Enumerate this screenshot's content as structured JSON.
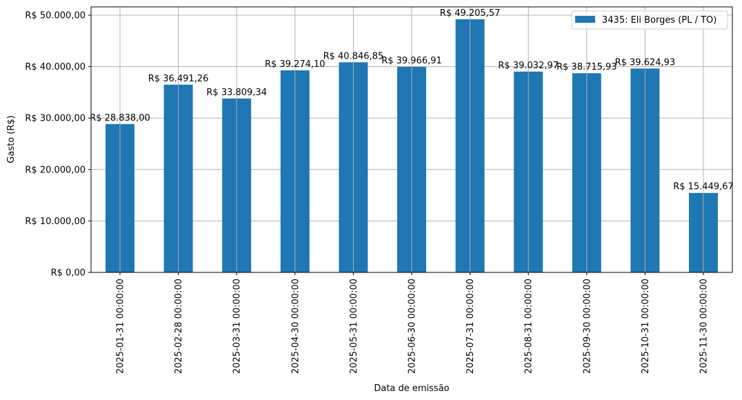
{
  "chart_data": {
    "type": "bar",
    "title": "",
    "xlabel": "Data de emissão",
    "ylabel": "Gasto (R$)",
    "ylim": [
      0,
      51600
    ],
    "grid": true,
    "legend_position": "upper right",
    "categories": [
      "2025-01-31 00:00:00",
      "2025-02-28 00:00:00",
      "2025-03-31 00:00:00",
      "2025-04-30 00:00:00",
      "2025-05-31 00:00:00",
      "2025-06-30 00:00:00",
      "2025-07-31 00:00:00",
      "2025-08-31 00:00:00",
      "2025-09-30 00:00:00",
      "2025-10-31 00:00:00",
      "2025-11-30 00:00:00"
    ],
    "series": [
      {
        "name": "3435: Eli Borges (PL / TO)",
        "color": "#1f77b4",
        "values": [
          28838.0,
          36491.26,
          33809.34,
          39274.1,
          40846.85,
          39966.91,
          49205.57,
          39032.97,
          38715.93,
          39624.93,
          15449.67
        ],
        "labels": [
          "R$ 28.838,00",
          "R$ 36.491,26",
          "R$ 33.809,34",
          "R$ 39.274,10",
          "R$ 40.846,85",
          "R$ 39.966,91",
          "R$ 49.205,57",
          "R$ 39.032,97",
          "R$ 38.715,93",
          "R$ 39.624,93",
          "R$ 15.449,67"
        ]
      }
    ],
    "yticks": [
      0,
      10000,
      20000,
      30000,
      40000,
      50000
    ],
    "ytick_labels": [
      "R$ 0,00",
      "R$ 10.000,00",
      "R$ 20.000,00",
      "R$ 30.000,00",
      "R$ 40.000,00",
      "R$ 50.000,00"
    ]
  },
  "colors": {
    "bar": "#1f77b4",
    "grid": "#b0b0b0",
    "axis": "#000000",
    "legend_border": "#cccccc"
  }
}
